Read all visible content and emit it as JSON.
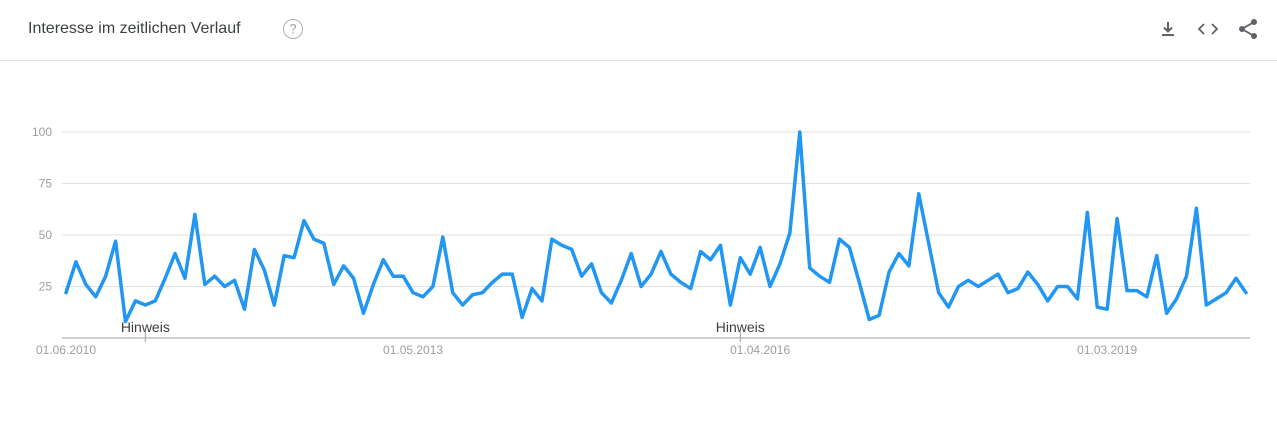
{
  "header": {
    "title": "Interesse im zeitlichen Verlauf",
    "help_label": "?",
    "icons": [
      "download-icon",
      "embed-code-icon",
      "share-icon"
    ]
  },
  "colors": {
    "line": "#2196f3",
    "grid": "#e0e0e0",
    "axis_text": "#9e9e9e",
    "axis_line": "#9e9e9e"
  },
  "chart_data": {
    "type": "line",
    "title": "",
    "xlabel": "",
    "ylabel": "",
    "x_start": "01.06.2010",
    "x_interval": "monthly",
    "x_ticks": [
      {
        "label": "01.06.2010",
        "index": 0
      },
      {
        "label": "01.05.2013",
        "index": 35
      },
      {
        "label": "01.04.2016",
        "index": 70
      },
      {
        "label": "01.03.2019",
        "index": 105
      }
    ],
    "y_ticks": [
      25,
      50,
      75,
      100
    ],
    "ylim": [
      0,
      100
    ],
    "grid": true,
    "annotations": [
      {
        "label": "Hinweis",
        "index": 8
      },
      {
        "label": "Hinweis",
        "index": 68
      }
    ],
    "series": [
      {
        "values": [
          22,
          37,
          26,
          20,
          30,
          47,
          8,
          18,
          16,
          18,
          29,
          41,
          29,
          60,
          26,
          30,
          25,
          28,
          14,
          43,
          33,
          16,
          40,
          39,
          57,
          48,
          46,
          26,
          35,
          29,
          12,
          26,
          38,
          30,
          30,
          22,
          20,
          25,
          49,
          22,
          16,
          21,
          22,
          27,
          31,
          31,
          10,
          24,
          18,
          48,
          45,
          43,
          30,
          36,
          22,
          17,
          28,
          41,
          25,
          31,
          42,
          31,
          27,
          24,
          42,
          38,
          45,
          16,
          39,
          31,
          44,
          25,
          36,
          51,
          100,
          34,
          30,
          27,
          48,
          44,
          27,
          9,
          11,
          32,
          41,
          35,
          70,
          46,
          22,
          15,
          25,
          28,
          25,
          28,
          31,
          22,
          24,
          32,
          26,
          18,
          25,
          25,
          19,
          61,
          15,
          14,
          58,
          23,
          23,
          20,
          40,
          12,
          19,
          30,
          63,
          16,
          19,
          22,
          29,
          22
        ]
      }
    ]
  }
}
